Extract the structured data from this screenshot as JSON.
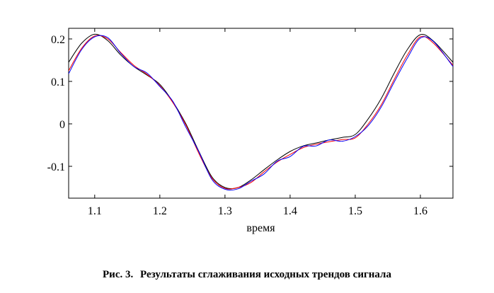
{
  "caption": {
    "label": "Рис. 3.",
    "text": "Результаты сглаживания исходных трендов сигнала"
  },
  "chart_data": {
    "type": "line",
    "title": "",
    "xlabel": "время",
    "ylabel": "",
    "xlim": [
      1.06,
      1.65
    ],
    "ylim": [
      -0.175,
      0.225
    ],
    "xticks": [
      1.1,
      1.2,
      1.3,
      1.4,
      1.5,
      1.6
    ],
    "xtick_labels": [
      "1.1",
      "1.2",
      "1.3",
      "1.4",
      "1.5",
      "1.6"
    ],
    "yticks": [
      0.2,
      0.1,
      0,
      -0.1
    ],
    "ytick_labels": [
      "0.2",
      "0.1",
      "0",
      "-0.1"
    ],
    "grid": false,
    "legend": "none",
    "series": [
      {
        "color": "#000000",
        "x": [
          1.06,
          1.08,
          1.1,
          1.12,
          1.14,
          1.16,
          1.18,
          1.2,
          1.22,
          1.24,
          1.26,
          1.28,
          1.3,
          1.32,
          1.34,
          1.36,
          1.38,
          1.4,
          1.42,
          1.44,
          1.46,
          1.48,
          1.5,
          1.52,
          1.54,
          1.56,
          1.58,
          1.6,
          1.62,
          1.65
        ],
        "y": [
          0.145,
          0.19,
          0.211,
          0.196,
          0.162,
          0.135,
          0.115,
          0.093,
          0.052,
          0.0,
          -0.065,
          -0.125,
          -0.15,
          -0.15,
          -0.132,
          -0.108,
          -0.085,
          -0.065,
          -0.052,
          -0.045,
          -0.038,
          -0.032,
          -0.025,
          0.012,
          0.06,
          0.12,
          0.175,
          0.21,
          0.195,
          0.145
        ]
      },
      {
        "color": "#ff0000",
        "x": [
          1.06,
          1.08,
          1.1,
          1.12,
          1.14,
          1.16,
          1.18,
          1.2,
          1.22,
          1.24,
          1.26,
          1.28,
          1.3,
          1.32,
          1.34,
          1.36,
          1.38,
          1.4,
          1.42,
          1.44,
          1.46,
          1.48,
          1.5,
          1.52,
          1.54,
          1.56,
          1.58,
          1.6,
          1.62,
          1.65
        ],
        "y": [
          0.125,
          0.178,
          0.207,
          0.2,
          0.168,
          0.138,
          0.117,
          0.09,
          0.05,
          -0.003,
          -0.07,
          -0.128,
          -0.152,
          -0.15,
          -0.138,
          -0.113,
          -0.09,
          -0.072,
          -0.056,
          -0.048,
          -0.042,
          -0.037,
          -0.033,
          0.0,
          0.045,
          0.105,
          0.162,
          0.205,
          0.19,
          0.138
        ]
      },
      {
        "color": "#0000ff",
        "x": [
          1.06,
          1.08,
          1.1,
          1.12,
          1.14,
          1.16,
          1.18,
          1.2,
          1.22,
          1.24,
          1.26,
          1.28,
          1.3,
          1.32,
          1.34,
          1.36,
          1.38,
          1.4,
          1.42,
          1.44,
          1.46,
          1.48,
          1.5,
          1.52,
          1.54,
          1.56,
          1.58,
          1.6,
          1.62,
          1.65
        ],
        "y": [
          0.118,
          0.175,
          0.205,
          0.203,
          0.166,
          0.135,
          0.12,
          0.088,
          0.053,
          -0.008,
          -0.066,
          -0.131,
          -0.154,
          -0.153,
          -0.135,
          -0.118,
          -0.088,
          -0.077,
          -0.053,
          -0.052,
          -0.038,
          -0.041,
          -0.03,
          -0.004,
          0.04,
          0.099,
          0.155,
          0.202,
          0.194,
          0.135
        ]
      }
    ]
  }
}
